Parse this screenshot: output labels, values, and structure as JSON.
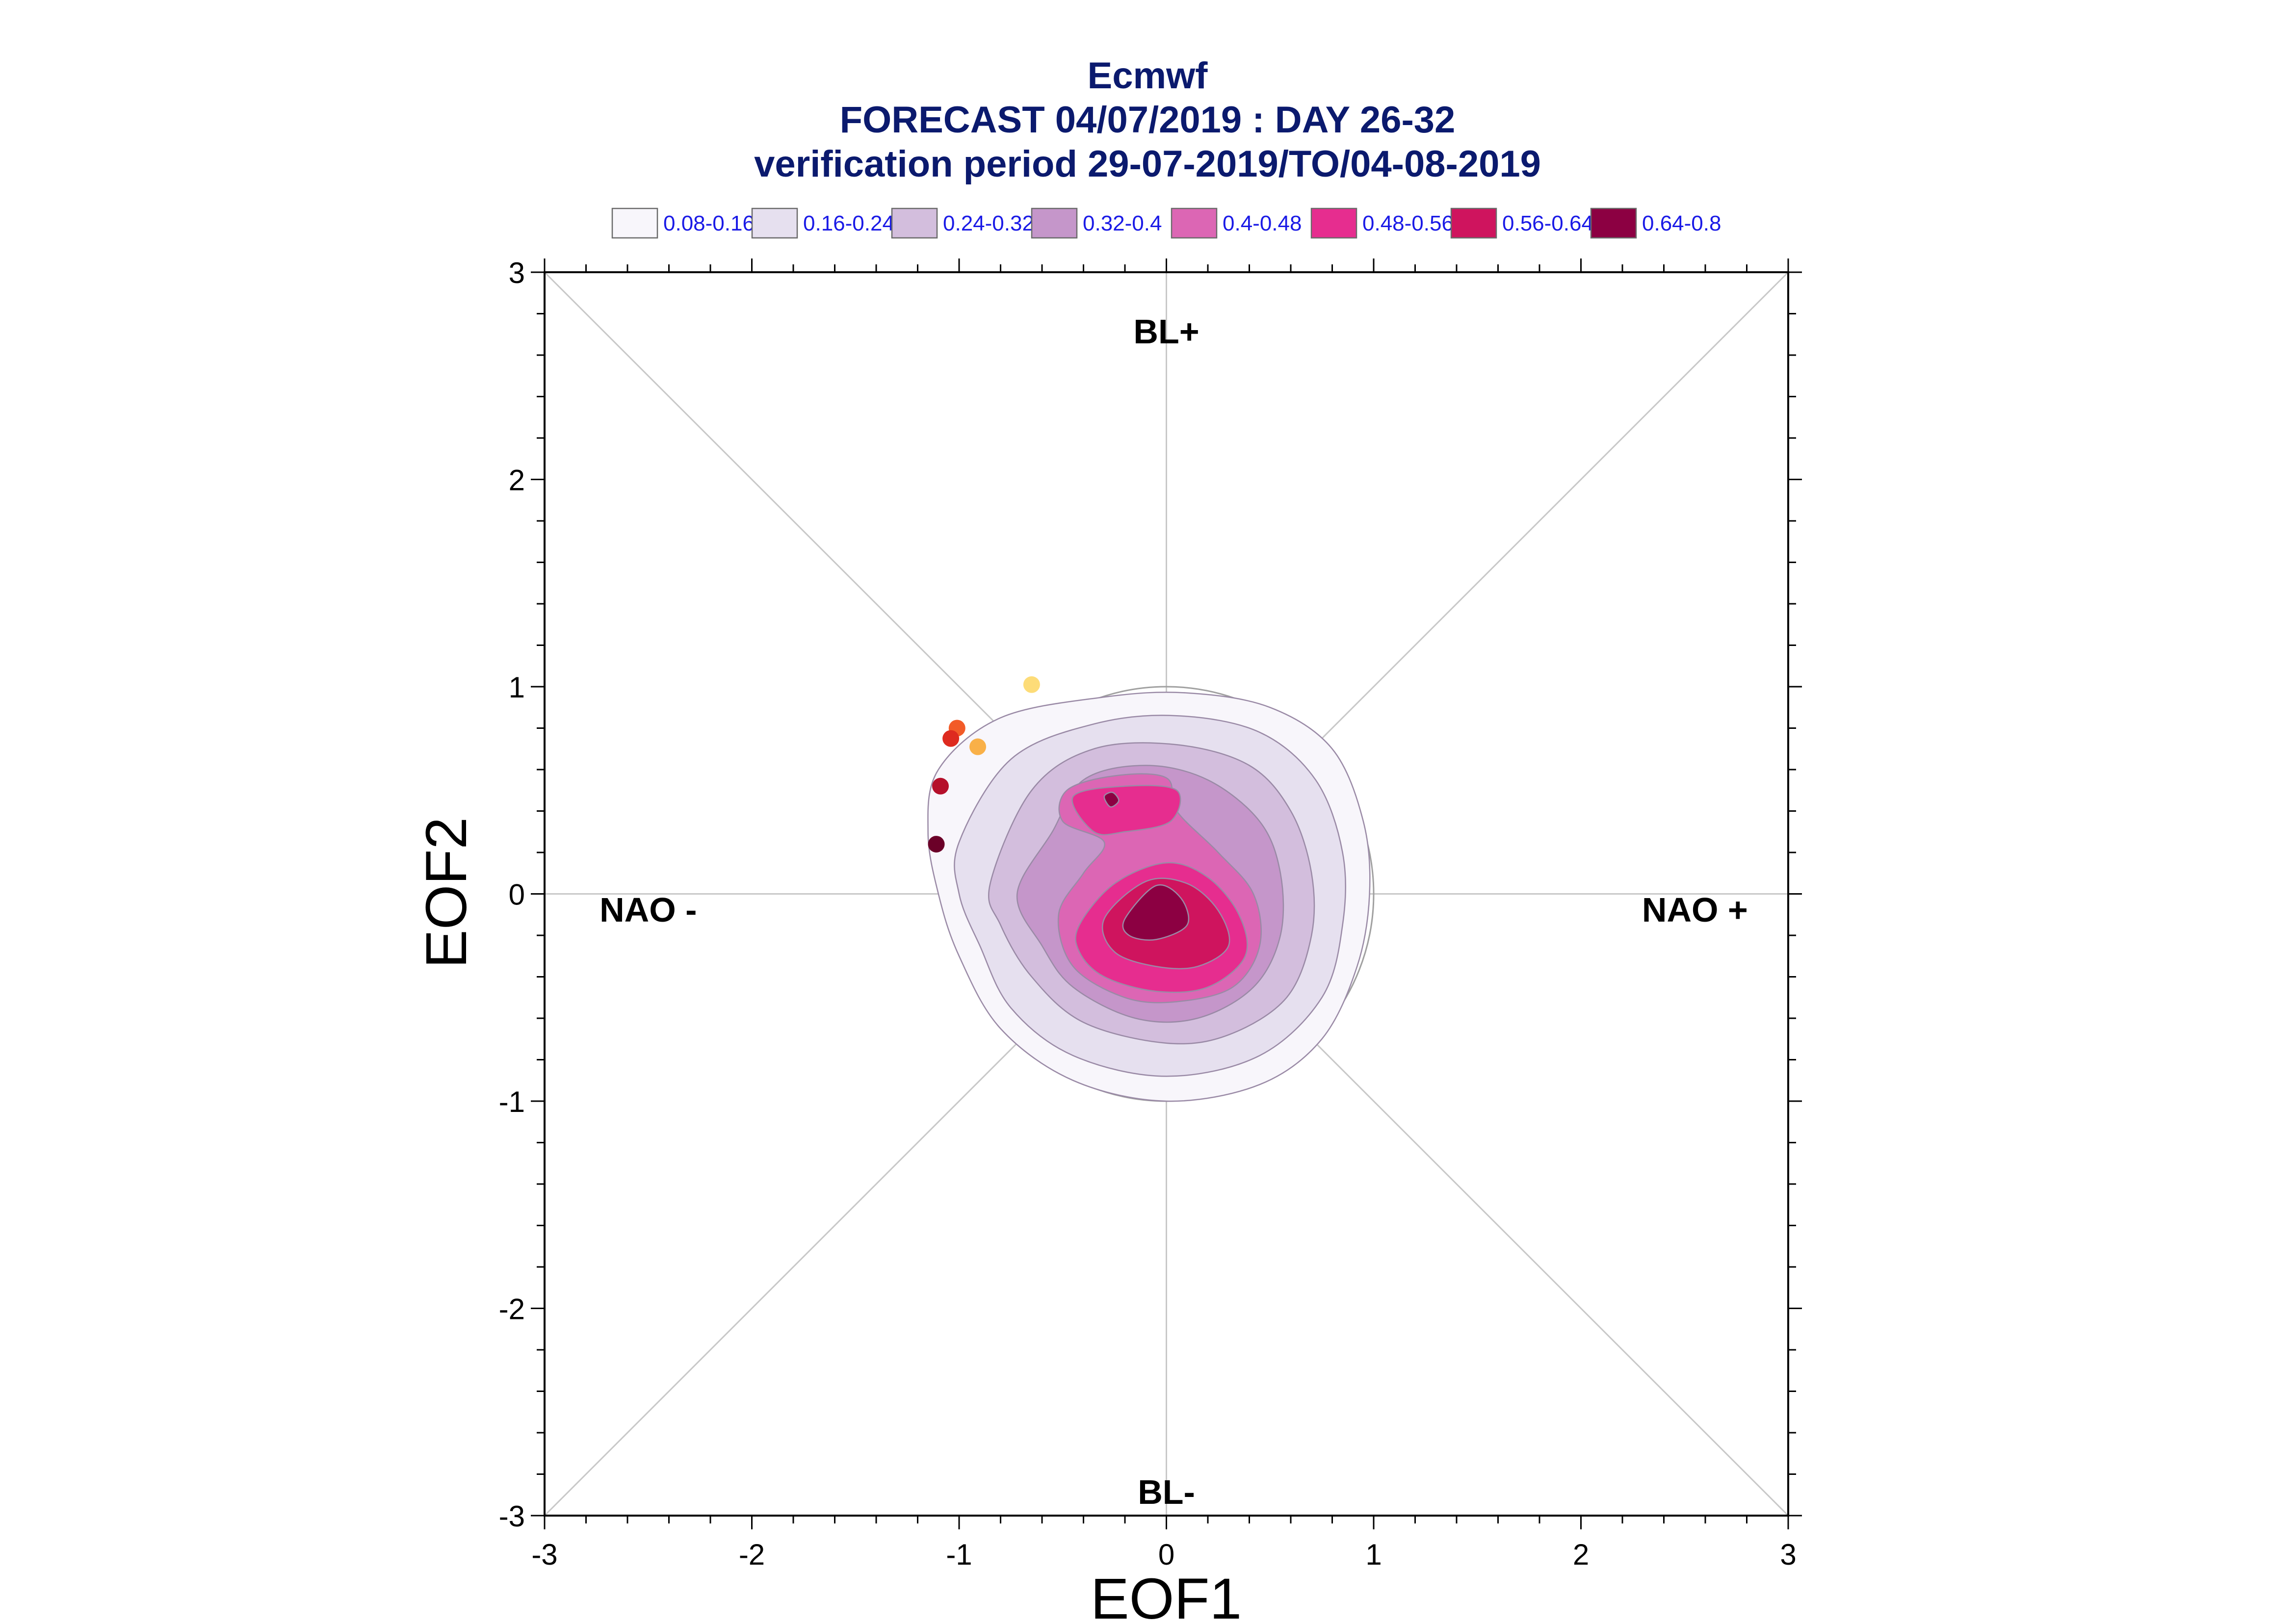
{
  "title": "Ecmwf",
  "subtitle": "FORECAST 04/07/2019 : DAY 26-32",
  "subtitle2": "verification period 29-07-2019/TO/04-08-2019",
  "chart_data": {
    "type": "scatter",
    "xlabel": "EOF1",
    "ylabel": "EOF2",
    "xlim": [
      -3,
      3
    ],
    "ylim": [
      -3,
      3
    ],
    "xticks": [
      -3,
      -2,
      -1,
      0,
      1,
      2,
      3
    ],
    "yticks": [
      -3,
      -2,
      -1,
      0,
      1,
      2,
      3
    ],
    "grid": false,
    "region_labels": [
      {
        "text": "BL+",
        "x": 0,
        "y": 2.7
      },
      {
        "text": "BL-",
        "x": 0,
        "y": -2.9
      },
      {
        "text": "NAO -",
        "x": -2.5,
        "y": -0.09
      },
      {
        "text": "NAO +",
        "x": 2.55,
        "y": -0.09
      }
    ],
    "legend": {
      "placement": "top",
      "entries": [
        {
          "label": "0.08-0.16",
          "color": "#f8f6fb"
        },
        {
          "label": "0.16-0.24",
          "color": "#e6e0ef"
        },
        {
          "label": "0.24-0.32",
          "color": "#d3bedd"
        },
        {
          "label": "0.32-0.4",
          "color": "#c596ca"
        },
        {
          "label": "0.4-0.48",
          "color": "#dc66b4"
        },
        {
          "label": "0.48-0.56",
          "color": "#e62d8f"
        },
        {
          "label": "0.56-0.64",
          "color": "#cf145e"
        },
        {
          "label": "0.64-0.8",
          "color": "#8c0042"
        }
      ]
    },
    "density_levels": [
      {
        "color": "#f8f6fb",
        "points": [
          [
            -1.1,
            0.6
          ],
          [
            -0.8,
            0.85
          ],
          [
            -0.3,
            0.95
          ],
          [
            0.1,
            0.97
          ],
          [
            0.5,
            0.9
          ],
          [
            0.8,
            0.7
          ],
          [
            0.95,
            0.35
          ],
          [
            0.98,
            0.0
          ],
          [
            0.92,
            -0.35
          ],
          [
            0.75,
            -0.7
          ],
          [
            0.45,
            -0.92
          ],
          [
            0.0,
            -1.0
          ],
          [
            -0.45,
            -0.9
          ],
          [
            -0.8,
            -0.65
          ],
          [
            -1.0,
            -0.3
          ],
          [
            -1.1,
            0.0
          ],
          [
            -1.15,
            0.3
          ]
        ]
      },
      {
        "color": "#e6e0ef",
        "points": [
          [
            -1.0,
            0.25
          ],
          [
            -0.75,
            0.65
          ],
          [
            -0.35,
            0.82
          ],
          [
            0.05,
            0.86
          ],
          [
            0.45,
            0.78
          ],
          [
            0.72,
            0.55
          ],
          [
            0.85,
            0.2
          ],
          [
            0.85,
            -0.15
          ],
          [
            0.75,
            -0.5
          ],
          [
            0.45,
            -0.78
          ],
          [
            0.0,
            -0.88
          ],
          [
            -0.45,
            -0.78
          ],
          [
            -0.75,
            -0.55
          ],
          [
            -0.9,
            -0.25
          ],
          [
            -1.0,
            0.0
          ]
        ]
      },
      {
        "color": "#d3bedd",
        "points": [
          [
            -0.85,
            0.05
          ],
          [
            -0.65,
            0.5
          ],
          [
            -0.35,
            0.7
          ],
          [
            0.05,
            0.72
          ],
          [
            0.4,
            0.62
          ],
          [
            0.6,
            0.4
          ],
          [
            0.7,
            0.1
          ],
          [
            0.7,
            -0.2
          ],
          [
            0.58,
            -0.5
          ],
          [
            0.3,
            -0.68
          ],
          [
            0.0,
            -0.72
          ],
          [
            -0.4,
            -0.62
          ],
          [
            -0.65,
            -0.4
          ],
          [
            -0.8,
            -0.15
          ]
        ]
      },
      {
        "color": "#c596ca",
        "points": [
          [
            -0.72,
            0.0
          ],
          [
            -0.55,
            0.3
          ],
          [
            -0.4,
            0.55
          ],
          [
            -0.1,
            0.62
          ],
          [
            0.2,
            0.55
          ],
          [
            0.45,
            0.35
          ],
          [
            0.55,
            0.1
          ],
          [
            0.55,
            -0.2
          ],
          [
            0.42,
            -0.45
          ],
          [
            0.15,
            -0.6
          ],
          [
            -0.15,
            -0.6
          ],
          [
            -0.45,
            -0.45
          ],
          [
            -0.6,
            -0.25
          ]
        ]
      },
      {
        "color": "#dc66b4",
        "points": [
          [
            -0.48,
            0.5
          ],
          [
            -0.25,
            0.57
          ],
          [
            0.0,
            0.56
          ],
          [
            0.05,
            0.4
          ],
          [
            0.25,
            0.2
          ],
          [
            0.42,
            0.0
          ],
          [
            0.45,
            -0.25
          ],
          [
            0.32,
            -0.45
          ],
          [
            0.05,
            -0.52
          ],
          [
            -0.2,
            -0.5
          ],
          [
            -0.45,
            -0.35
          ],
          [
            -0.52,
            -0.1
          ],
          [
            -0.4,
            0.1
          ],
          [
            -0.3,
            0.25
          ],
          [
            -0.5,
            0.35
          ]
        ]
      },
      {
        "color": "#e62d8f",
        "points": [
          [
            -0.45,
            0.47
          ],
          [
            -0.2,
            0.52
          ],
          [
            0.05,
            0.5
          ],
          [
            0.02,
            0.35
          ],
          [
            -0.2,
            0.3
          ],
          [
            -0.35,
            0.3
          ]
        ]
      },
      {
        "color": "#e62d8f",
        "points": [
          [
            -0.42,
            -0.15
          ],
          [
            -0.25,
            0.05
          ],
          [
            0.0,
            0.15
          ],
          [
            0.2,
            0.08
          ],
          [
            0.35,
            -0.1
          ],
          [
            0.38,
            -0.3
          ],
          [
            0.2,
            -0.45
          ],
          [
            -0.05,
            -0.47
          ],
          [
            -0.3,
            -0.4
          ],
          [
            -0.42,
            -0.28
          ]
        ]
      },
      {
        "color": "#cf145e",
        "points": [
          [
            -0.3,
            -0.12
          ],
          [
            -0.1,
            0.06
          ],
          [
            0.1,
            0.05
          ],
          [
            0.25,
            -0.08
          ],
          [
            0.3,
            -0.25
          ],
          [
            0.15,
            -0.35
          ],
          [
            -0.05,
            -0.35
          ],
          [
            -0.25,
            -0.28
          ]
        ]
      },
      {
        "color": "#8c0042",
        "points": [
          [
            -0.2,
            -0.12
          ],
          [
            -0.05,
            0.04
          ],
          [
            0.07,
            -0.02
          ],
          [
            0.1,
            -0.15
          ],
          [
            -0.05,
            -0.22
          ],
          [
            -0.18,
            -0.2
          ]
        ]
      },
      {
        "color": "#8c0042",
        "points": [
          [
            -0.3,
            0.47
          ],
          [
            -0.26,
            0.49
          ],
          [
            -0.23,
            0.45
          ],
          [
            -0.27,
            0.42
          ]
        ]
      }
    ],
    "points": [
      {
        "x": -0.65,
        "y": 1.01,
        "color": "#fddc78"
      },
      {
        "x": -0.91,
        "y": 0.71,
        "color": "#f9b048"
      },
      {
        "x": -1.01,
        "y": 0.8,
        "color": "#f25b28"
      },
      {
        "x": -1.04,
        "y": 0.75,
        "color": "#de2a1f"
      },
      {
        "x": -1.09,
        "y": 0.52,
        "color": "#b5102b"
      },
      {
        "x": -1.11,
        "y": 0.24,
        "color": "#6b0028"
      }
    ]
  }
}
